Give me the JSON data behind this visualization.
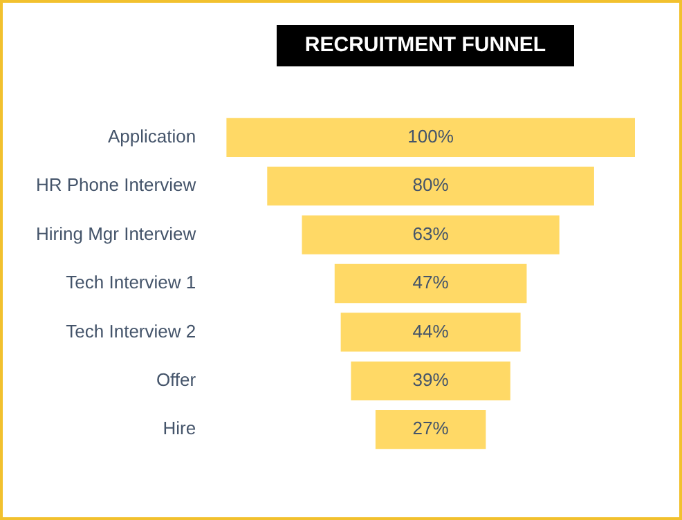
{
  "chart_data": {
    "type": "other",
    "title": "RECRUITMENT FUNNEL",
    "categories": [
      "Application",
      "HR Phone Interview",
      "Hiring Mgr Interview",
      "Tech Interview 1",
      "Tech Interview 2",
      "Offer",
      "Hire"
    ],
    "values": [
      100,
      80,
      63,
      47,
      44,
      39,
      27
    ],
    "value_labels": [
      "100%",
      "80%",
      "63%",
      "47%",
      "44%",
      "39%",
      "27%"
    ],
    "color": "#ffd966"
  }
}
